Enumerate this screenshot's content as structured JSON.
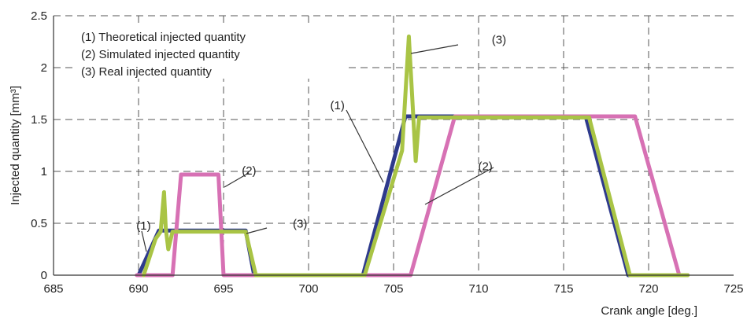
{
  "chart_data": {
    "type": "line",
    "title": "",
    "xlabel": "Crank angle [deg.]",
    "ylabel": "Injected quantity [mm³]",
    "xlim": [
      685,
      725
    ],
    "ylim": [
      0,
      2.5
    ],
    "xticks": [
      685,
      690,
      695,
      700,
      705,
      710,
      715,
      720,
      725
    ],
    "yticks": [
      0,
      0.5,
      1,
      1.5,
      2,
      2.5
    ],
    "xtick_labels": [
      "685",
      "690",
      "695",
      "700",
      "705",
      "710",
      "715",
      "720",
      "725"
    ],
    "ytick_labels": [
      "0",
      "0.5",
      "1",
      "1.5",
      "2",
      "2.5"
    ],
    "grid": true,
    "legend_position": "top-left",
    "legend": [
      "(1) Theoretical injected quantity",
      "(2) Simulated injected quantity",
      "(3) Real injected quantity"
    ],
    "series": [
      {
        "label": "(1)",
        "color": "#2e3a8c",
        "x": [
          690,
          691.2,
          696.3,
          696.8,
          703.2,
          705.7,
          716.3,
          718.8,
          719.5
        ],
        "y": [
          0,
          0.43,
          0.43,
          0,
          0,
          1.53,
          1.53,
          0,
          0
        ]
      },
      {
        "label": "(2)",
        "color": "#d771b4",
        "x": [
          689.9,
          692,
          692.5,
          694.7,
          695,
          706,
          708.6,
          719.2,
          721.8,
          722.3
        ],
        "y": [
          0,
          0,
          0.97,
          0.97,
          0,
          0,
          1.53,
          1.53,
          0,
          0
        ]
      },
      {
        "label": "(3)",
        "color": "#a9c445",
        "x": [
          690.3,
          691,
          691.3,
          691.5,
          691.6,
          691.75,
          692,
          696.3,
          696.9,
          703.3,
          705.5,
          705.9,
          706.1,
          706.3,
          706.5,
          716.5,
          718.9,
          722.3
        ],
        "y": [
          0,
          0.35,
          0.42,
          0.8,
          0.45,
          0.25,
          0.42,
          0.42,
          0,
          0,
          1.2,
          2.3,
          1.7,
          1.1,
          1.52,
          1.52,
          0,
          0
        ]
      }
    ],
    "annotations": [
      {
        "text": "(1)",
        "x": 690.3,
        "y": 0.44
      },
      {
        "text": "(2)",
        "x": 696.5,
        "y": 0.97
      },
      {
        "text": "(3)",
        "x": 699.5,
        "y": 0.46
      },
      {
        "text": "(1)",
        "x": 701.7,
        "y": 1.6
      },
      {
        "text": "(2)",
        "x": 710.4,
        "y": 1.01
      },
      {
        "text": "(3)",
        "x": 711.2,
        "y": 2.23
      }
    ]
  }
}
